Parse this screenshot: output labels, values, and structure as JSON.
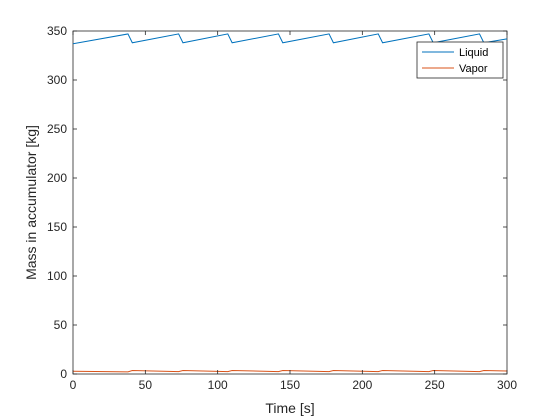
{
  "chart_data": {
    "type": "line",
    "xlabel": "Time [s]",
    "ylabel": "Mass in accumulator [kg]",
    "xlim": [
      0,
      300
    ],
    "ylim": [
      0,
      350
    ],
    "x_ticks": [
      0,
      50,
      100,
      150,
      200,
      250,
      300
    ],
    "y_ticks": [
      0,
      50,
      100,
      150,
      200,
      250,
      300,
      350
    ],
    "grid": false,
    "legend_position": "top-right",
    "series": [
      {
        "name": "Liquid",
        "color": "#0072BD",
        "x": [
          0,
          38,
          41,
          73,
          76,
          107,
          110,
          142,
          145,
          177,
          180,
          211,
          214,
          246,
          249,
          281,
          284,
          300
        ],
        "y": [
          337,
          347,
          338,
          347,
          338,
          347,
          338,
          347,
          338,
          347,
          338,
          347,
          338,
          347,
          338,
          347,
          338,
          342
        ]
      },
      {
        "name": "Vapor",
        "color": "#D95319",
        "x": [
          0,
          38,
          41,
          73,
          76,
          107,
          110,
          142,
          145,
          177,
          180,
          211,
          214,
          246,
          249,
          281,
          284,
          300
        ],
        "y": [
          2.8,
          2.2,
          3.6,
          2.4,
          3.6,
          2.4,
          3.6,
          2.4,
          3.6,
          2.4,
          3.6,
          2.4,
          3.6,
          2.4,
          3.6,
          2.4,
          3.6,
          3.0
        ]
      }
    ]
  }
}
